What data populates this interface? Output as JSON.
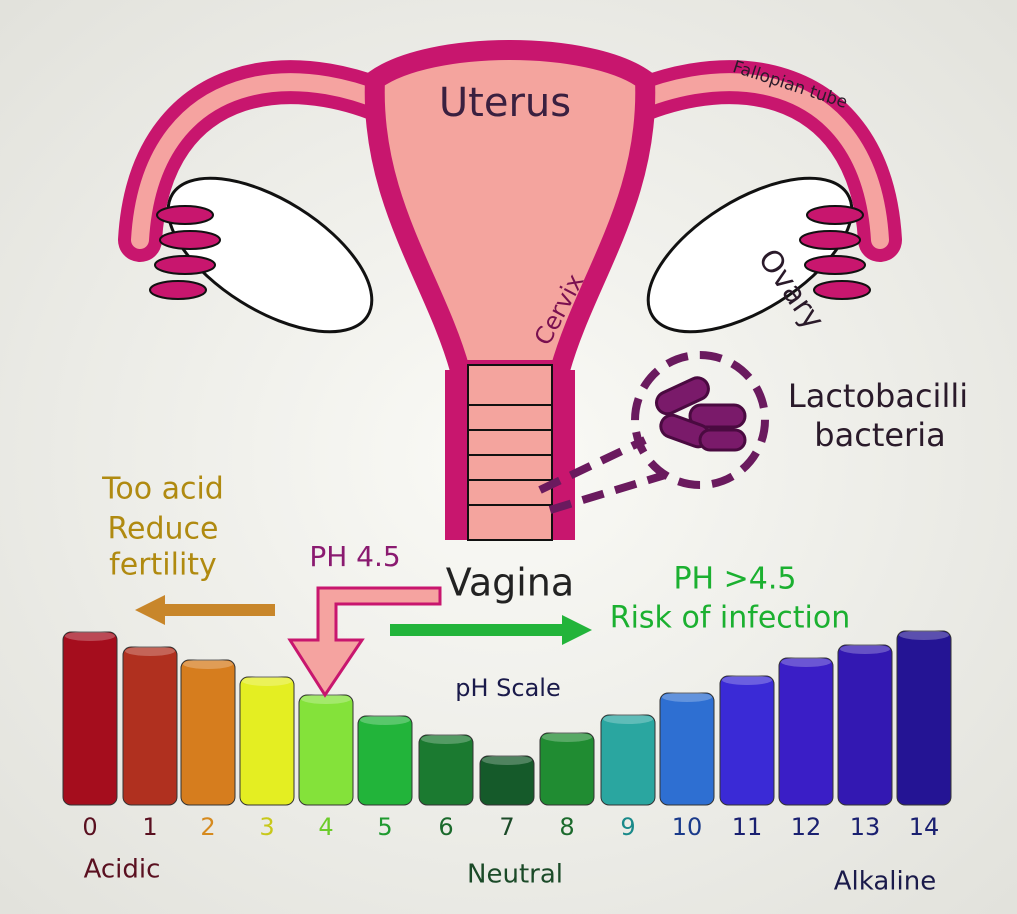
{
  "anatomy": {
    "uterus": "Uterus",
    "fallopian_tube": "Fallopian tube",
    "ovary": "Ovary",
    "cervix": "Cervix",
    "vagina": "Vagina"
  },
  "bacteria": {
    "lines": [
      "Lactobacilli",
      "bacteria"
    ]
  },
  "acid_note": {
    "lines": [
      "Too acid",
      "Reduce",
      "fertility"
    ]
  },
  "normal_ph": "PH 4.5",
  "high_ph": {
    "lines": [
      "PH >4.5",
      "Risk of infection"
    ]
  },
  "ph_scale": {
    "title": "pH Scale",
    "levels": [
      {
        "label": 0,
        "color": "#a50d1d",
        "label_color": "#5a1020"
      },
      {
        "label": 1,
        "color": "#b0301f",
        "label_color": "#5a1020"
      },
      {
        "label": 2,
        "color": "#d67d1e",
        "label_color": "#d68a1e"
      },
      {
        "label": 3,
        "color": "#e4ee22",
        "label_color": "#c8c81a"
      },
      {
        "label": 4,
        "color": "#84e23a",
        "label_color": "#6ccc2a"
      },
      {
        "label": 5,
        "color": "#22b43a",
        "label_color": "#1f9a30"
      },
      {
        "label": 6,
        "color": "#1b7a30",
        "label_color": "#1b6a2c"
      },
      {
        "label": 7,
        "color": "#155a2a",
        "label_color": "#1b4a28"
      },
      {
        "label": 8,
        "color": "#208c32",
        "label_color": "#1b6a2c"
      },
      {
        "label": 9,
        "color": "#2aa6a0",
        "label_color": "#1a8a8a"
      },
      {
        "label": 10,
        "color": "#2e6fd2",
        "label_color": "#1a3a8a"
      },
      {
        "label": 11,
        "color": "#3a2ad6",
        "label_color": "#1a2070"
      },
      {
        "label": 12,
        "color": "#3a1ec6",
        "label_color": "#1a2070"
      },
      {
        "label": 13,
        "color": "#3318b2",
        "label_color": "#1a2070"
      },
      {
        "label": 14,
        "color": "#241494",
        "label_color": "#1a2070"
      }
    ],
    "ends": {
      "acidic": "Acidic",
      "neutral": "Neutral",
      "alkaline": "Alkaline"
    }
  }
}
